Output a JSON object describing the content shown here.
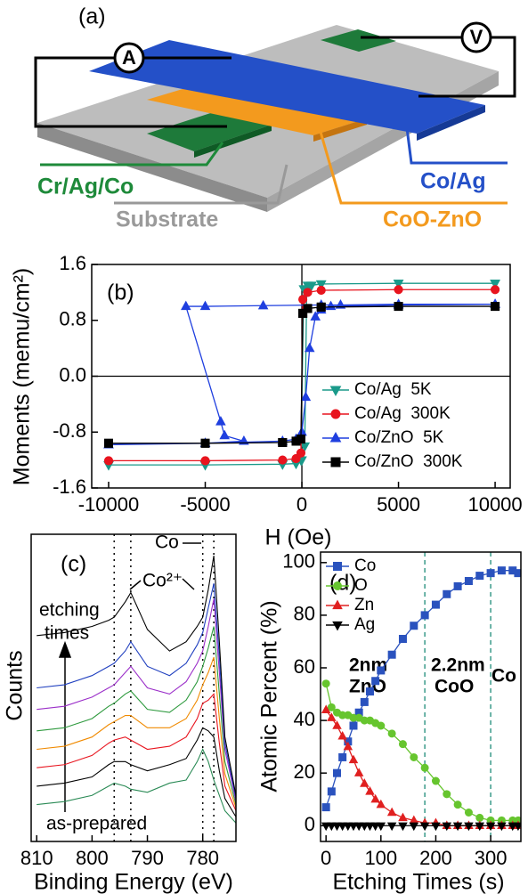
{
  "diagram": {
    "panel_label": "(a)",
    "ammeter": "A",
    "voltmeter": "V",
    "cr_ag_co": "Cr/Ag/Co",
    "substrate": "Substrate",
    "co_ag": "Co/Ag",
    "coo_zno": "CoO-ZnO"
  },
  "chart_data": [
    {
      "type": "line",
      "panel_label": "(b)",
      "x_label": "H (Oe)",
      "y_label": "Moments (memu/cm²)",
      "xlim": [
        -10875,
        10780
      ],
      "xticks": [
        -10000,
        -5000,
        0,
        5000,
        10000
      ],
      "ylim": [
        -1.6,
        1.6
      ],
      "yticks": [
        -1.6,
        -0.8,
        {
          "value": 0,
          "label": "0.0"
        },
        0.8,
        1.6
      ],
      "zero_lines": true,
      "legend": "lower right",
      "series": [
        {
          "name": "Co/Ag  5K",
          "color": "#1a9a8a",
          "marker": "triangle-down",
          "x": [
            10000,
            5000,
            1000,
            300,
            100,
            -50,
            -300,
            -1000,
            -5000,
            -10000,
            -10000,
            -5000,
            -1000,
            -300,
            0,
            150,
            250,
            500,
            1000,
            5000,
            10000
          ],
          "values": [
            1.33,
            1.33,
            1.32,
            1.3,
            1.25,
            -1.2,
            -1.25,
            -1.26,
            -1.27,
            -1.27,
            -1.27,
            -1.27,
            -1.26,
            -1.25,
            -1.2,
            -1.0,
            1.25,
            1.3,
            1.32,
            1.33,
            1.33
          ]
        },
        {
          "name": "Co/Ag  300K",
          "color": "#e8141e",
          "marker": "circle",
          "x": [
            10000,
            5000,
            1000,
            300,
            50,
            -50,
            -300,
            -1000,
            -5000,
            -10000,
            -10000,
            -5000,
            -1000,
            -300,
            -50,
            50,
            300,
            1000,
            5000,
            10000
          ],
          "values": [
            1.24,
            1.24,
            1.23,
            1.2,
            1.1,
            -1.1,
            -1.18,
            -1.2,
            -1.21,
            -1.21,
            -1.21,
            -1.21,
            -1.2,
            -1.18,
            -1.1,
            1.1,
            1.2,
            1.23,
            1.24,
            1.24
          ]
        },
        {
          "name": "Co/ZnO  5K",
          "color": "#1f3fdf",
          "marker": "triangle",
          "x": [
            10000,
            5000,
            2000,
            1000,
            -2000,
            -5000,
            -6000,
            -4200,
            -4000,
            -3000,
            -5000,
            -10000,
            -10000,
            -5000,
            -1000,
            -300,
            0,
            200,
            400,
            700,
            1000,
            1500,
            5000,
            10000
          ],
          "values": [
            1.03,
            1.03,
            1.02,
            1.02,
            1.01,
            1.0,
            1.0,
            -0.65,
            -0.85,
            -0.93,
            -0.96,
            -0.98,
            -0.98,
            -0.96,
            -0.93,
            -0.9,
            -0.8,
            -0.3,
            0.4,
            0.85,
            0.95,
            1.0,
            1.02,
            1.03
          ]
        },
        {
          "name": "Co/ZnO  300K",
          "color": "#000000",
          "marker": "square",
          "x": [
            10000,
            5000,
            1000,
            300,
            50,
            -50,
            -300,
            -1000,
            -5000,
            -10000,
            -10000,
            -5000,
            -1000,
            -300,
            -50,
            50,
            300,
            1000,
            5000,
            10000
          ],
          "values": [
            1.0,
            1.0,
            0.99,
            0.97,
            0.9,
            -0.9,
            -0.93,
            -0.95,
            -0.96,
            -0.96,
            -0.96,
            -0.96,
            -0.95,
            -0.93,
            -0.9,
            0.9,
            0.97,
            0.99,
            1.0,
            1.0
          ]
        }
      ]
    },
    {
      "type": "line",
      "panel_label": "(c)",
      "x_label": "Binding Energy (eV)",
      "y_label": "Counts",
      "annotations": [
        "Co",
        "Co²⁺",
        "etching",
        "times",
        "as-prepared"
      ],
      "xlim": [
        811,
        774
      ],
      "xticks": [
        810,
        800,
        790,
        780
      ],
      "ylim": [
        0,
        10
      ],
      "vlines": [
        796,
        793,
        780,
        778
      ],
      "vline_color": "#000000",
      "x": [
        810,
        805,
        800,
        797,
        796,
        794,
        793,
        790,
        786,
        783,
        781,
        780,
        779,
        778,
        777,
        776,
        774
      ],
      "series": [
        {
          "color": "#2a8a55",
          "values": [
            1.2,
            1.3,
            1.5,
            1.8,
            1.9,
            1.8,
            1.7,
            1.6,
            1.9,
            2.0,
            2.6,
            3.0,
            2.6,
            2.0,
            1.5,
            1.0,
            0.6
          ]
        },
        {
          "color": "#000000",
          "values": [
            1.8,
            1.9,
            2.1,
            2.5,
            2.6,
            2.6,
            2.5,
            2.3,
            2.5,
            2.7,
            3.3,
            3.7,
            3.6,
            3.4,
            2.3,
            1.4,
            0.8
          ]
        },
        {
          "color": "#e8141e",
          "values": [
            2.4,
            2.5,
            2.8,
            3.2,
            3.3,
            3.4,
            3.3,
            3.0,
            3.1,
            3.4,
            4.0,
            4.5,
            4.6,
            4.8,
            3.2,
            1.8,
            1.0
          ]
        },
        {
          "color": "#f08a00",
          "values": [
            3.0,
            3.1,
            3.4,
            3.8,
            3.9,
            4.1,
            4.1,
            3.7,
            3.7,
            4.0,
            4.6,
            5.1,
            5.5,
            6.0,
            4.0,
            2.2,
            1.1
          ]
        },
        {
          "color": "#2e9a3e",
          "values": [
            3.6,
            3.7,
            4.0,
            4.4,
            4.5,
            4.8,
            4.9,
            4.3,
            4.2,
            4.6,
            5.2,
            5.7,
            6.3,
            7.0,
            4.8,
            2.6,
            1.2
          ]
        },
        {
          "color": "#9b2fc9",
          "values": [
            4.3,
            4.4,
            4.7,
            5.0,
            5.1,
            5.5,
            5.7,
            5.0,
            4.8,
            5.2,
            5.8,
            6.2,
            7.0,
            7.9,
            5.5,
            3.0,
            1.3
          ]
        },
        {
          "color": "#1f3fbf",
          "values": [
            5.0,
            5.1,
            5.4,
            5.7,
            5.8,
            6.2,
            6.5,
            5.7,
            5.4,
            5.8,
            6.4,
            6.8,
            7.6,
            8.4,
            6.0,
            3.2,
            1.4
          ]
        },
        {
          "color": "#000000",
          "values": [
            6.7,
            6.8,
            7.0,
            7.2,
            7.3,
            7.8,
            8.1,
            6.9,
            6.2,
            6.5,
            7.0,
            7.3,
            8.2,
            9.3,
            6.5,
            3.4,
            1.5
          ]
        }
      ]
    },
    {
      "type": "line",
      "panel_label": "(d)",
      "x_label": "Etching Times (s)",
      "y_label": "Atomic Percent (%)",
      "annotations": [
        "2nm",
        "ZnO",
        "2.2nm",
        "CoO",
        "Co"
      ],
      "xlim": [
        -10,
        355
      ],
      "xticks": [
        0,
        100,
        200,
        300
      ],
      "ylim": [
        -6,
        104
      ],
      "yticks": [
        0,
        20,
        40,
        60,
        80,
        100
      ],
      "vlines": [
        180,
        300
      ],
      "vline_color": "#3a9a8a",
      "legend": "upper left",
      "x": [
        0,
        10,
        20,
        30,
        40,
        50,
        60,
        70,
        80,
        90,
        100,
        120,
        140,
        160,
        180,
        200,
        220,
        240,
        260,
        280,
        300,
        320,
        340,
        350
      ],
      "series": [
        {
          "name": "Co",
          "color": "#2a52be",
          "marker": "square",
          "values": [
            7,
            13,
            20,
            26,
            32,
            38,
            43,
            47,
            51,
            55,
            59,
            65,
            71,
            76,
            80,
            84,
            88,
            91,
            93,
            95,
            96,
            97,
            97,
            96
          ]
        },
        {
          "name": "O",
          "color": "#66c52e",
          "marker": "circle",
          "values": [
            54,
            45,
            43,
            42,
            42,
            41,
            41,
            40,
            40,
            39,
            38,
            35,
            31,
            26,
            22,
            17,
            12,
            8,
            5,
            3,
            2,
            2,
            2,
            2
          ]
        },
        {
          "name": "Zn",
          "color": "#e02020",
          "marker": "triangle",
          "values": [
            44,
            41,
            38,
            34,
            30,
            25,
            20,
            16,
            13,
            10,
            8,
            5,
            3,
            2,
            1,
            1,
            0,
            0,
            0,
            0,
            0,
            0,
            0,
            0
          ]
        },
        {
          "name": "Ag",
          "color": "#000000",
          "marker": "triangle-down",
          "values": [
            0,
            0,
            0,
            0,
            0,
            0,
            0,
            0,
            0,
            0,
            0,
            0,
            0,
            0,
            0,
            0,
            0,
            0,
            0,
            0,
            0,
            0,
            0,
            0
          ]
        }
      ]
    }
  ]
}
